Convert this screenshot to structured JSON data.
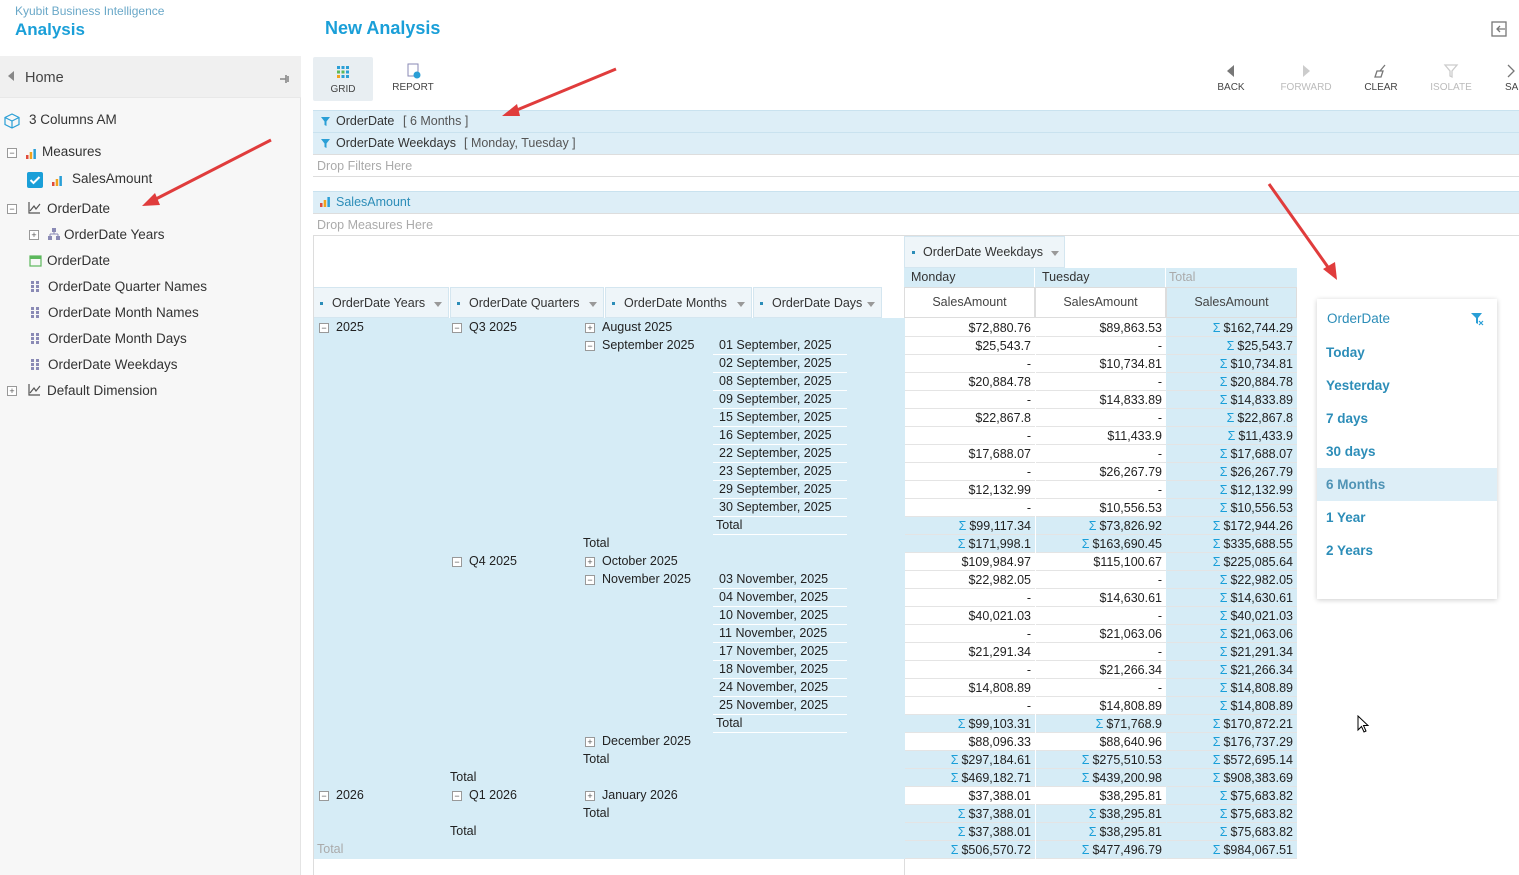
{
  "app": {
    "brand": "Kyubit Business Intelligence",
    "title": "Analysis",
    "page_title": "New Analysis"
  },
  "sidebar": {
    "home": "Home",
    "cube": "3 Columns AM",
    "items": [
      {
        "label": "Measures",
        "icon": "measures-icon"
      },
      {
        "label": "SalesAmount",
        "icon": "measure-bar-icon",
        "checked": true
      },
      {
        "label": "OrderDate",
        "icon": "date-dimension-icon"
      },
      {
        "label": "OrderDate Years",
        "icon": "hierarchy-icon"
      },
      {
        "label": "OrderDate",
        "icon": "calendar-icon"
      },
      {
        "label": "OrderDate Quarter Names",
        "icon": "attribute-icon"
      },
      {
        "label": "OrderDate Month Names",
        "icon": "attribute-icon"
      },
      {
        "label": "OrderDate Month Days",
        "icon": "attribute-icon"
      },
      {
        "label": "OrderDate Weekdays",
        "icon": "attribute-icon"
      },
      {
        "label": "Default Dimension",
        "icon": "dimension-icon"
      }
    ]
  },
  "toolbar": {
    "grid": "GRID",
    "report": "REPORT",
    "back": "BACK",
    "forward": "FORWARD",
    "clear": "CLEAR",
    "isolate": "ISOLATE",
    "save": "SA"
  },
  "filters": {
    "f1_name": "OrderDate",
    "f1_value": "[ 6 Months ]",
    "f2_name": "OrderDate Weekdays",
    "f2_value": "[ Monday, Tuesday ]",
    "drop_filters": "Drop Filters Here",
    "measure": "SalesAmount",
    "drop_measures": "Drop Measures Here"
  },
  "pivot": {
    "col_dim": "OrderDate Weekdays",
    "col_members": [
      "Monday",
      "Tuesday",
      "Total"
    ],
    "measure_label": "SalesAmount",
    "row_dims": [
      "OrderDate Years",
      "OrderDate Quarters",
      "OrderDate Months",
      "OrderDate Days"
    ],
    "rows": [
      {
        "year": "2025",
        "quarter": "Q3 2025",
        "month": "August 2025",
        "mexp": "+",
        "day": "",
        "mon": "$72,880.76",
        "tue": "$89,863.53",
        "tot": "$162,744.29",
        "sum": false
      },
      {
        "year": "",
        "quarter": "",
        "month": "September 2025",
        "mexp": "-",
        "day": "01 September, 2025",
        "mon": "$25,543.7",
        "tue": "-",
        "tot": "$25,543.7",
        "sum": false
      },
      {
        "day": "02 September, 2025",
        "mon": "-",
        "tue": "$10,734.81",
        "tot": "$10,734.81"
      },
      {
        "day": "08 September, 2025",
        "mon": "$20,884.78",
        "tue": "-",
        "tot": "$20,884.78"
      },
      {
        "day": "09 September, 2025",
        "mon": "-",
        "tue": "$14,833.89",
        "tot": "$14,833.89"
      },
      {
        "day": "15 September, 2025",
        "mon": "$22,867.8",
        "tue": "-",
        "tot": "$22,867.8"
      },
      {
        "day": "16 September, 2025",
        "mon": "-",
        "tue": "$11,433.9",
        "tot": "$11,433.9"
      },
      {
        "day": "22 September, 2025",
        "mon": "$17,688.07",
        "tue": "-",
        "tot": "$17,688.07"
      },
      {
        "day": "23 September, 2025",
        "mon": "-",
        "tue": "$26,267.79",
        "tot": "$26,267.79"
      },
      {
        "day": "29 September, 2025",
        "mon": "$12,132.99",
        "tue": "-",
        "tot": "$12,132.99"
      },
      {
        "day": "30 September, 2025",
        "mon": "-",
        "tue": "$10,556.53",
        "tot": "$10,556.53"
      },
      {
        "dayTotal": "Total",
        "mon": "$99,117.34",
        "tue": "$73,826.92",
        "tot": "$172,944.26",
        "sum": true
      },
      {
        "monthTotal": "Total",
        "mon": "$171,998.1",
        "tue": "$163,690.45",
        "tot": "$335,688.55",
        "sum": true
      },
      {
        "quarter": "Q4 2025",
        "month": "October 2025",
        "mexp": "+",
        "mon": "$109,984.97",
        "tue": "$115,100.67",
        "tot": "$225,085.64"
      },
      {
        "month": "November 2025",
        "mexp": "-",
        "day": "03 November, 2025",
        "mon": "$22,982.05",
        "tue": "-",
        "tot": "$22,982.05"
      },
      {
        "day": "04 November, 2025",
        "mon": "-",
        "tue": "$14,630.61",
        "tot": "$14,630.61"
      },
      {
        "day": "10 November, 2025",
        "mon": "$40,021.03",
        "tue": "-",
        "tot": "$40,021.03"
      },
      {
        "day": "11 November, 2025",
        "mon": "-",
        "tue": "$21,063.06",
        "tot": "$21,063.06"
      },
      {
        "day": "17 November, 2025",
        "mon": "$21,291.34",
        "tue": "-",
        "tot": "$21,291.34"
      },
      {
        "day": "18 November, 2025",
        "mon": "-",
        "tue": "$21,266.34",
        "tot": "$21,266.34"
      },
      {
        "day": "24 November, 2025",
        "mon": "$14,808.89",
        "tue": "-",
        "tot": "$14,808.89"
      },
      {
        "day": "25 November, 2025",
        "mon": "-",
        "tue": "$14,808.89",
        "tot": "$14,808.89"
      },
      {
        "dayTotal": "Total",
        "mon": "$99,103.31",
        "tue": "$71,768.9",
        "tot": "$170,872.21",
        "sum": true
      },
      {
        "month": "December 2025",
        "mexp": "+",
        "mon": "$88,096.33",
        "tue": "$88,640.96",
        "tot": "$176,737.29"
      },
      {
        "monthTotal": "Total",
        "mon": "$297,184.61",
        "tue": "$275,510.53",
        "tot": "$572,695.14",
        "sum": true
      },
      {
        "quarterTotal": "Total",
        "mon": "$469,182.71",
        "tue": "$439,200.98",
        "tot": "$908,383.69",
        "sum": true
      },
      {
        "year": "2026",
        "quarter": "Q1 2026",
        "month": "January 2026",
        "mexp": "+",
        "mon": "$37,388.01",
        "tue": "$38,295.81",
        "tot": "$75,683.82"
      },
      {
        "monthTotal": "Total",
        "mon": "$37,388.01",
        "tue": "$38,295.81",
        "tot": "$75,683.82",
        "sum": true
      },
      {
        "quarterTotal": "Total",
        "mon": "$37,388.01",
        "tue": "$38,295.81",
        "tot": "$75,683.82",
        "sum": true
      },
      {
        "grandTotal": "Total",
        "mon": "$506,570.72",
        "tue": "$477,496.79",
        "tot": "$984,067.51",
        "sum": true
      }
    ]
  },
  "filter_popup": {
    "title": "OrderDate",
    "options": [
      "Today",
      "Yesterday",
      "7 days",
      "30 days",
      "6 Months",
      "1 Year",
      "2 Years"
    ],
    "selected": "6 Months"
  },
  "colors": {
    "accent": "#1a9fd8",
    "arrow": "#e03c3c",
    "row_bg": "#d6ecf6"
  }
}
